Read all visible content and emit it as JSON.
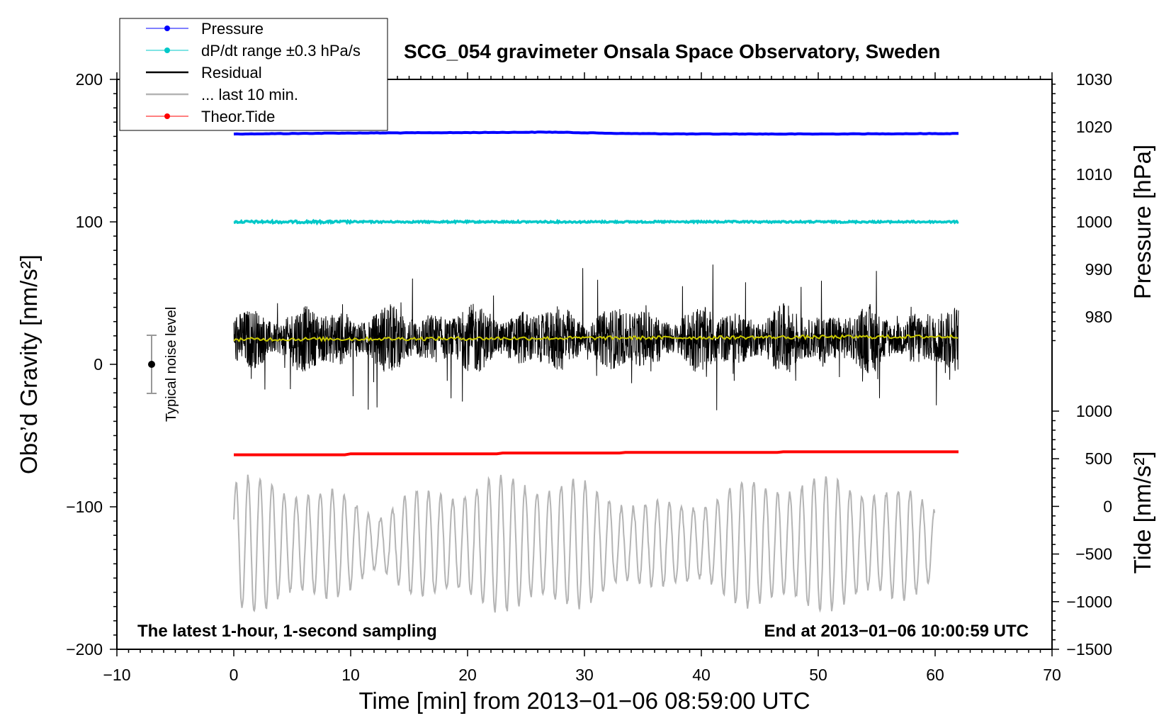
{
  "chart_data": {
    "type": "line",
    "title": "SCG_054 gravimeter Onsala Space Observatory, Sweden",
    "xlabel": "Time [min] from 2013−01−06 08:59:00 UTC",
    "ylabel_left": "Obs’d Gravity [nm/s²]",
    "ylabel_right_pressure": "Pressure [hPa]",
    "ylabel_right_tide": "Tide [nm/s²]",
    "xlim": [
      -10,
      70
    ],
    "ylim": [
      -200,
      200
    ],
    "pressure_axis_range": [
      970,
      1030
    ],
    "tide_axis_range": [
      -1500,
      1000
    ],
    "x_ticks": [
      "−10",
      "0",
      "10",
      "20",
      "30",
      "40",
      "50",
      "60",
      "70"
    ],
    "y_ticks_left": [
      "200",
      "100",
      "0",
      "−100",
      "−200"
    ],
    "y_ticks_pressure": [
      "1030",
      "1020",
      "1010",
      "1000",
      "990",
      "980"
    ],
    "y_ticks_tide": [
      "1000",
      "500",
      "0",
      "−500",
      "−1000",
      "−1500"
    ],
    "grid": false,
    "legend_placement": "top-left",
    "series": [
      {
        "name": "Pressure",
        "color": "#0000ff",
        "axis": "pressure",
        "x": [
          0,
          10,
          20,
          27,
          33.5,
          40,
          50,
          62
        ],
        "values": [
          1018.5,
          1018.7,
          1018.8,
          1018.9,
          1018.6,
          1018.5,
          1018.5,
          1018.6
        ]
      },
      {
        "name": "dP/dt range ±0.3 hPa/s",
        "color": "#00c8c8",
        "axis": "left",
        "x": [
          0,
          62
        ],
        "values": [
          100,
          100
        ]
      },
      {
        "name": "Residual",
        "color": "#000000",
        "axis": "left",
        "x_range": [
          0,
          62
        ],
        "mean": 18,
        "envelope": [
          -43,
          75
        ]
      },
      {
        "name": "... last 10 min.",
        "color": "#b4b4b4",
        "axis": "left",
        "x_range": [
          0,
          60
        ],
        "envelope": [
          -185,
          -68
        ]
      },
      {
        "name": "Theor.Tide",
        "color": "#ff0000",
        "axis": "tide",
        "x": [
          0,
          10,
          23,
          33.5,
          46.7,
          62
        ],
        "values": [
          542,
          552,
          560,
          567,
          573,
          577
        ]
      }
    ],
    "annotations": {
      "noise_label": "Typical noise level",
      "bottom_left_note": "The latest 1-hour, 1-second sampling",
      "bottom_right_note": "End at 2013−01−06 10:00:59 UTC",
      "noise_bar": {
        "x": -7,
        "center": 0,
        "range": [
          -20,
          20
        ]
      }
    },
    "colors": {
      "pressure": "#0000ff",
      "dpdt": "#00c8c8",
      "residual": "#000000",
      "residual_smooth": "#c8c800",
      "last10": "#b4b4b4",
      "tide": "#ff0000"
    }
  }
}
